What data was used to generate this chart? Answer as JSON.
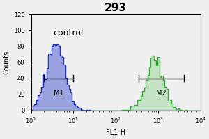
{
  "title": "293",
  "xlabel": "FL1-H",
  "ylabel": "Counts",
  "ylim": [
    0,
    120
  ],
  "yticks": [
    0,
    20,
    40,
    60,
    80,
    100,
    120
  ],
  "xlim_log": [
    1.0,
    10000.0
  ],
  "control_label": "control",
  "blue_color": "#2233bb",
  "blue_fill": "#3344cc",
  "green_color": "#33aa33",
  "green_fill": "#44bb44",
  "m1_label": "M1",
  "m2_label": "M2",
  "m1_x1": 2.0,
  "m1_x2": 10.0,
  "m2_x1": 350.0,
  "m2_x2": 4000.0,
  "m_y": 40,
  "m_tick_size": 4,
  "blue_mean_log": 0.58,
  "blue_sigma_log": 0.22,
  "blue_n": 3000,
  "blue_peak_scale": 82,
  "green_mean_log": 2.92,
  "green_sigma_log": 0.21,
  "green_n": 2000,
  "green_peak_scale": 68,
  "title_fontsize": 11,
  "axis_fontsize": 6,
  "label_fontsize": 7,
  "tick_label_fontsize": 6,
  "control_fontsize": 9,
  "background_color": "#f0f0f0"
}
